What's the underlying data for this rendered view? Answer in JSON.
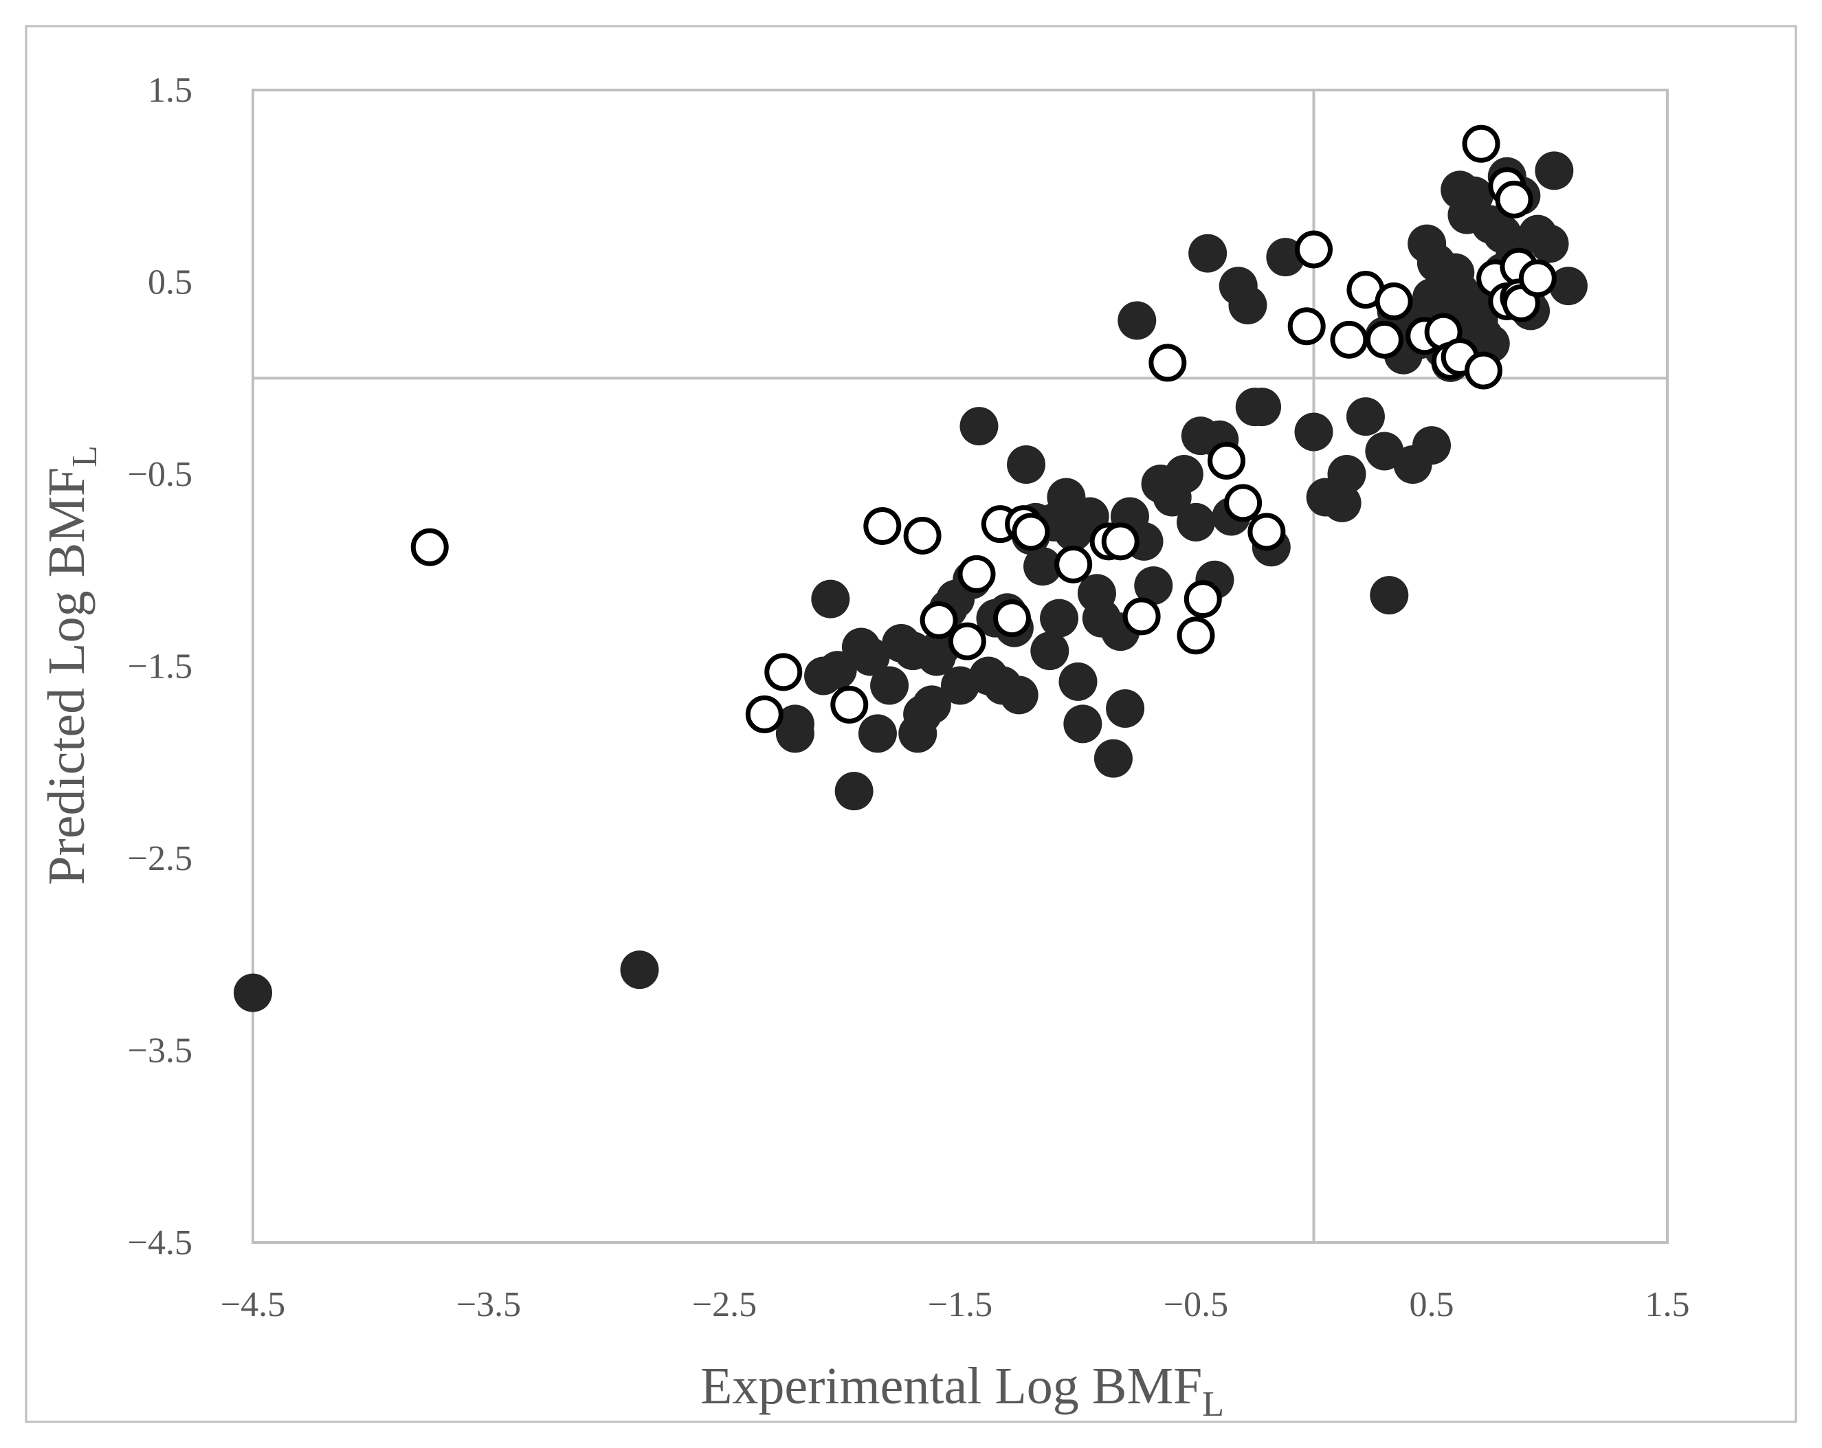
{
  "chart_data": {
    "type": "scatter",
    "title": "",
    "xlabel": "Experimental Log BMF",
    "xlabel_sub": "L",
    "ylabel": "Predicted Log BMF",
    "ylabel_sub": "L",
    "xlim": [
      -4.5,
      1.5
    ],
    "ylim": [
      -4.5,
      1.5
    ],
    "x_ticks": [
      "−4.5",
      "−3.5",
      "−2.5",
      "−1.5",
      "−0.5",
      "0.5",
      "1.5"
    ],
    "y_ticks": [
      "1.5",
      "0.5",
      "−0.5",
      "−1.5",
      "−2.5",
      "−3.5",
      "−4.5"
    ],
    "reference_lines": {
      "x": 0,
      "y": 0
    },
    "grid": false,
    "legend": "none",
    "colors": {
      "frame": "#bfbfbf",
      "text": "#595959",
      "filled_marker": "#262626",
      "open_marker_fill": "#ffffff",
      "open_marker_edge": "#000000"
    },
    "series": [
      {
        "marker": "filled-circle",
        "x": [
          -4.5,
          -2.86,
          -1.95,
          -2.05,
          -2.08,
          -2.02,
          -2.2,
          -2.2,
          -1.92,
          -1.88,
          -1.85,
          -1.8,
          -1.75,
          -1.7,
          -1.68,
          -1.66,
          -1.62,
          -1.6,
          -1.58,
          -1.55,
          -1.52,
          -1.5,
          -1.45,
          -1.42,
          -1.38,
          -1.35,
          -1.32,
          -1.3,
          -1.27,
          -1.25,
          -1.22,
          -1.2,
          -1.18,
          -1.15,
          -1.12,
          -1.1,
          -1.08,
          -1.05,
          -1.02,
          -1.0,
          -0.98,
          -0.95,
          -0.92,
          -0.9,
          -0.85,
          -0.82,
          -0.8,
          -0.78,
          -0.75,
          -0.72,
          -0.68,
          -0.65,
          -0.6,
          -0.55,
          -0.5,
          -0.48,
          -0.45,
          -0.42,
          -0.4,
          -0.35,
          -0.32,
          -0.28,
          -0.25,
          -0.22,
          -0.18,
          -0.12,
          0.0,
          0.05,
          0.12,
          0.14,
          0.22,
          0.3,
          0.32,
          0.36,
          0.38,
          0.42,
          0.45,
          0.48,
          0.5,
          0.52,
          0.55,
          0.58,
          0.6,
          0.62,
          0.65,
          0.68,
          0.7,
          0.72,
          0.75,
          0.78,
          0.8,
          0.82,
          0.85,
          0.88,
          0.9,
          0.92,
          0.95,
          1.0,
          1.02,
          1.08,
          0.65,
          0.7,
          0.75,
          0.8,
          0.58,
          0.62,
          0.3,
          0.35,
          0.4,
          0.55,
          0.6,
          0.5
        ],
        "y": [
          -3.2,
          -3.08,
          -2.15,
          -1.15,
          -1.55,
          -1.52,
          -1.8,
          -1.85,
          -1.4,
          -1.45,
          -1.85,
          -1.6,
          -1.38,
          -1.42,
          -1.85,
          -1.75,
          -1.7,
          -1.45,
          -1.4,
          -1.2,
          -1.15,
          -1.6,
          -1.05,
          -0.25,
          -1.55,
          -1.25,
          -1.6,
          -1.22,
          -1.3,
          -1.65,
          -0.45,
          -0.82,
          -0.75,
          -0.98,
          -1.42,
          -0.75,
          -1.25,
          -0.62,
          -0.8,
          -1.58,
          -1.8,
          -0.72,
          -1.12,
          -1.25,
          -1.98,
          -1.32,
          -1.72,
          -0.72,
          0.3,
          -0.85,
          -1.08,
          -0.55,
          -0.62,
          -0.5,
          -0.75,
          -0.3,
          0.65,
          -1.05,
          -0.32,
          -0.72,
          0.48,
          0.38,
          -0.15,
          -0.15,
          -0.88,
          0.63,
          -0.28,
          -0.62,
          -0.65,
          -0.5,
          -0.2,
          -0.38,
          -1.13,
          0.3,
          0.12,
          -0.45,
          0.2,
          0.7,
          -0.35,
          0.6,
          0.32,
          0.08,
          0.55,
          0.98,
          0.85,
          0.95,
          0.4,
          0.22,
          0.8,
          0.5,
          0.75,
          1.05,
          0.62,
          0.95,
          0.4,
          0.35,
          0.75,
          0.7,
          1.08,
          0.48,
          0.25,
          0.3,
          0.18,
          0.55,
          0.3,
          0.45,
          0.22,
          0.35,
          0.28,
          0.15,
          0.38,
          0.42
        ]
      },
      {
        "marker": "open-circle",
        "x": [
          -3.75,
          -2.33,
          -2.25,
          -1.97,
          -1.83,
          -1.66,
          -1.59,
          -1.43,
          -1.47,
          -1.33,
          -1.28,
          -1.23,
          -1.2,
          -1.02,
          -0.87,
          -0.82,
          -0.73,
          -0.62,
          -0.5,
          -0.47,
          -0.37,
          -0.3,
          -0.2,
          -0.03,
          0.0,
          0.15,
          0.22,
          0.3,
          0.34,
          0.47,
          0.55,
          0.58,
          0.62,
          0.71,
          0.72,
          0.77,
          0.82,
          0.82,
          0.85,
          0.87,
          0.87,
          0.88,
          0.95
        ],
        "y": [
          -0.88,
          -1.75,
          -1.53,
          -1.7,
          -0.77,
          -0.82,
          -1.26,
          -1.02,
          -1.37,
          -0.76,
          -1.25,
          -0.76,
          -0.8,
          -0.97,
          -0.85,
          -0.85,
          -1.24,
          0.08,
          -1.34,
          -1.15,
          -0.43,
          -0.65,
          -0.8,
          0.27,
          0.67,
          0.2,
          0.46,
          0.2,
          0.4,
          0.22,
          0.24,
          0.09,
          0.11,
          1.22,
          0.04,
          0.52,
          1.0,
          0.4,
          0.93,
          0.58,
          0.42,
          0.39,
          0.52
        ]
      }
    ]
  }
}
